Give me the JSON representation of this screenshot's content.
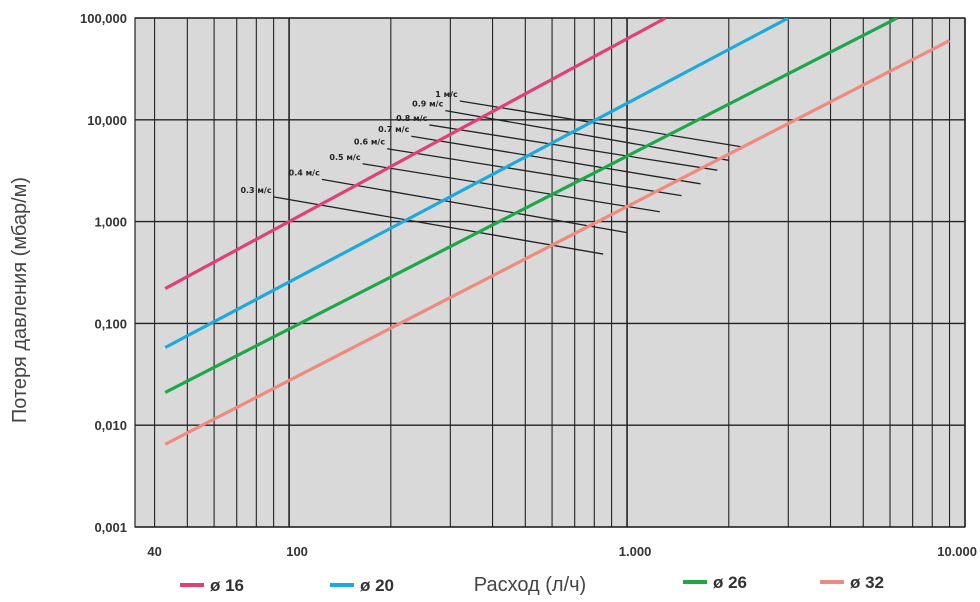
{
  "chart_data": {
    "type": "line",
    "xscale": "log",
    "yscale": "log",
    "xlim": [
      35,
      10000
    ],
    "ylim": [
      0.001,
      100
    ],
    "xlabel": "Расход (л/ч)",
    "ylabel": "Потеря давления (мбар/м)",
    "grid": true,
    "x_ticks": [
      {
        "value": 40,
        "label": "40"
      },
      {
        "value": 100,
        "label": "100"
      },
      {
        "value": 1000,
        "label": "1.000"
      },
      {
        "value": 10000,
        "label": "10.000"
      }
    ],
    "y_ticks": [
      {
        "value": 0.001,
        "label": "0,001"
      },
      {
        "value": 0.01,
        "label": "0,010"
      },
      {
        "value": 0.1,
        "label": "0,100"
      },
      {
        "value": 1,
        "label": "1,000"
      },
      {
        "value": 10,
        "label": "10,000"
      },
      {
        "value": 100,
        "label": "100,000"
      }
    ],
    "series": [
      {
        "name": "ø 16",
        "color": "#e0407a",
        "x": [
          43,
          1300
        ],
        "y": [
          0.22,
          100
        ]
      },
      {
        "name": "ø 20",
        "color": "#1ea8dc",
        "x": [
          43,
          3000
        ],
        "y": [
          0.058,
          100
        ]
      },
      {
        "name": "ø 26",
        "color": "#1fa64a",
        "x": [
          43,
          6300
        ],
        "y": [
          0.021,
          100
        ]
      },
      {
        "name": "ø 32",
        "color": "#f08a7e",
        "x": [
          43,
          9000
        ],
        "y": [
          0.0065,
          60
        ]
      }
    ],
    "velocity_lines": [
      {
        "label": "0.3 м/с",
        "x": [
          90,
          850
        ],
        "y": [
          1.75,
          0.48
        ]
      },
      {
        "label": "0.4 м/с",
        "x": [
          125,
          1000
        ],
        "y": [
          2.6,
          0.78
        ]
      },
      {
        "label": "0.5 м/с",
        "x": [
          165,
          1250
        ],
        "y": [
          3.7,
          1.25
        ]
      },
      {
        "label": "0.6 м/с",
        "x": [
          195,
          1450
        ],
        "y": [
          5.2,
          1.8
        ]
      },
      {
        "label": "0.7 м/с",
        "x": [
          230,
          1650
        ],
        "y": [
          6.9,
          2.35
        ]
      },
      {
        "label": "0.8 м/с",
        "x": [
          260,
          1850
        ],
        "y": [
          8.9,
          3.2
        ]
      },
      {
        "label": "0.9 м/с",
        "x": [
          290,
          2000
        ],
        "y": [
          12.3,
          4.0
        ]
      },
      {
        "label": "1 м/с",
        "x": [
          320,
          2200
        ],
        "y": [
          15.3,
          5.4
        ]
      }
    ]
  }
}
